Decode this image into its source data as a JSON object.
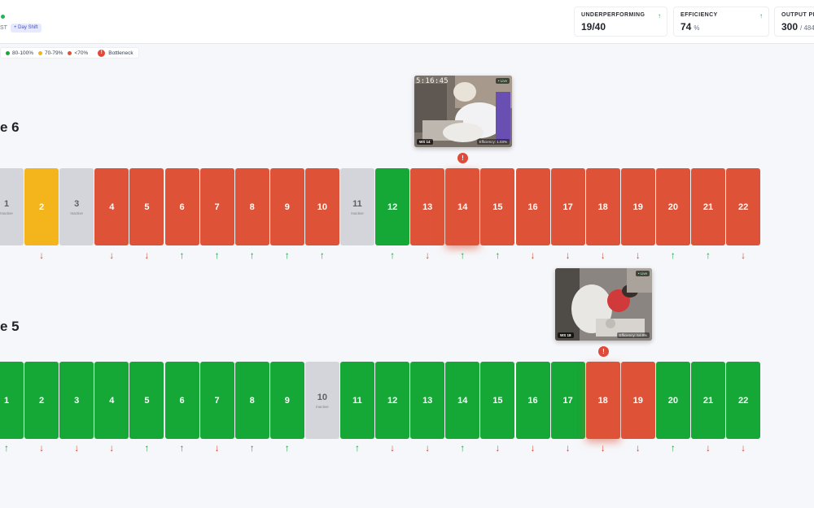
{
  "header": {
    "tz": "ST",
    "shift": "+ Day Shift",
    "stats": [
      {
        "label": "UNDERPERFORMING",
        "value": "19/40",
        "unit": "",
        "arrow": "↑"
      },
      {
        "label": "EFFICIENCY",
        "value": "74",
        "unit": "%",
        "arrow": "↑"
      },
      {
        "label": "OUTPUT PER",
        "value": "300",
        "unit": "/ 484",
        "arrow": ""
      }
    ]
  },
  "legend": {
    "items": [
      {
        "label": "80-100%",
        "color": "#15a837"
      },
      {
        "label": "70-79%",
        "color": "#f4b41c"
      },
      {
        "label": "<70%",
        "color": "#de5337"
      }
    ],
    "bottleneck_label": "Bottleneck",
    "bottleneck_icon": "!"
  },
  "colors": {
    "red": "#de5337",
    "yellow": "#f4b41c",
    "green": "#15a837",
    "gray": "#d3d5da"
  },
  "lines": [
    {
      "title": "e 6",
      "stations": [
        {
          "num": "1",
          "status": "gray",
          "sub": "Inactive",
          "trend": ""
        },
        {
          "num": "2",
          "status": "yellow",
          "sub": "",
          "trend": "down"
        },
        {
          "num": "3",
          "status": "gray",
          "sub": "Inactive",
          "trend": ""
        },
        {
          "num": "4",
          "status": "red",
          "sub": "",
          "trend": "down"
        },
        {
          "num": "5",
          "status": "red",
          "sub": "",
          "trend": "down"
        },
        {
          "num": "6",
          "status": "red",
          "sub": "",
          "trend": "up"
        },
        {
          "num": "7",
          "status": "red",
          "sub": "",
          "trend": "up"
        },
        {
          "num": "8",
          "status": "red",
          "sub": "",
          "trend": "up"
        },
        {
          "num": "9",
          "status": "red",
          "sub": "",
          "trend": "up"
        },
        {
          "num": "10",
          "status": "red",
          "sub": "",
          "trend": "up"
        },
        {
          "num": "11",
          "status": "gray",
          "sub": "Inactive",
          "trend": ""
        },
        {
          "num": "12",
          "status": "green",
          "sub": "",
          "trend": "up"
        },
        {
          "num": "13",
          "status": "red",
          "sub": "",
          "trend": "down"
        },
        {
          "num": "14",
          "status": "red",
          "sub": "",
          "trend": "up",
          "bottleneck": true
        },
        {
          "num": "15",
          "status": "red",
          "sub": "",
          "trend": "up"
        },
        {
          "num": "16",
          "status": "red",
          "sub": "",
          "trend": "down"
        },
        {
          "num": "17",
          "status": "red",
          "sub": "",
          "trend": "down"
        },
        {
          "num": "18",
          "status": "red",
          "sub": "",
          "trend": "down"
        },
        {
          "num": "19",
          "status": "red",
          "sub": "",
          "trend": "down"
        },
        {
          "num": "20",
          "status": "red",
          "sub": "",
          "trend": "up"
        },
        {
          "num": "21",
          "status": "red",
          "sub": "",
          "trend": "up"
        },
        {
          "num": "22",
          "status": "red",
          "sub": "",
          "trend": "down"
        }
      ],
      "camera": {
        "timestamp": "5:16:45",
        "live": "• Live",
        "ws": "WS 14",
        "eff": "Efficiency: 1.03%"
      }
    },
    {
      "title": "e 5",
      "stations": [
        {
          "num": "1",
          "status": "green",
          "sub": "",
          "trend": "up"
        },
        {
          "num": "2",
          "status": "green",
          "sub": "",
          "trend": "down"
        },
        {
          "num": "3",
          "status": "green",
          "sub": "",
          "trend": "down"
        },
        {
          "num": "4",
          "status": "green",
          "sub": "",
          "trend": "down"
        },
        {
          "num": "5",
          "status": "green",
          "sub": "",
          "trend": "up"
        },
        {
          "num": "6",
          "status": "green",
          "sub": "",
          "trend": "up"
        },
        {
          "num": "7",
          "status": "green",
          "sub": "",
          "trend": "down"
        },
        {
          "num": "8",
          "status": "green",
          "sub": "",
          "trend": "up"
        },
        {
          "num": "9",
          "status": "green",
          "sub": "",
          "trend": "up"
        },
        {
          "num": "10",
          "status": "gray",
          "sub": "Inactive",
          "trend": ""
        },
        {
          "num": "11",
          "status": "green",
          "sub": "",
          "trend": "up"
        },
        {
          "num": "12",
          "status": "green",
          "sub": "",
          "trend": "down"
        },
        {
          "num": "13",
          "status": "green",
          "sub": "",
          "trend": "down"
        },
        {
          "num": "14",
          "status": "green",
          "sub": "",
          "trend": "up"
        },
        {
          "num": "15",
          "status": "green",
          "sub": "",
          "trend": "down"
        },
        {
          "num": "16",
          "status": "green",
          "sub": "",
          "trend": "down"
        },
        {
          "num": "17",
          "status": "green",
          "sub": "",
          "trend": "down"
        },
        {
          "num": "18",
          "status": "red",
          "sub": "",
          "trend": "down",
          "bottleneck": true
        },
        {
          "num": "19",
          "status": "red",
          "sub": "",
          "trend": "down"
        },
        {
          "num": "20",
          "status": "green",
          "sub": "",
          "trend": "up"
        },
        {
          "num": "21",
          "status": "green",
          "sub": "",
          "trend": "down"
        },
        {
          "num": "22",
          "status": "green",
          "sub": "",
          "trend": "down"
        }
      ],
      "camera": {
        "timestamp": "",
        "live": "• Live",
        "ws": "WS 18",
        "eff": "Efficiency: 54.9%"
      }
    }
  ]
}
